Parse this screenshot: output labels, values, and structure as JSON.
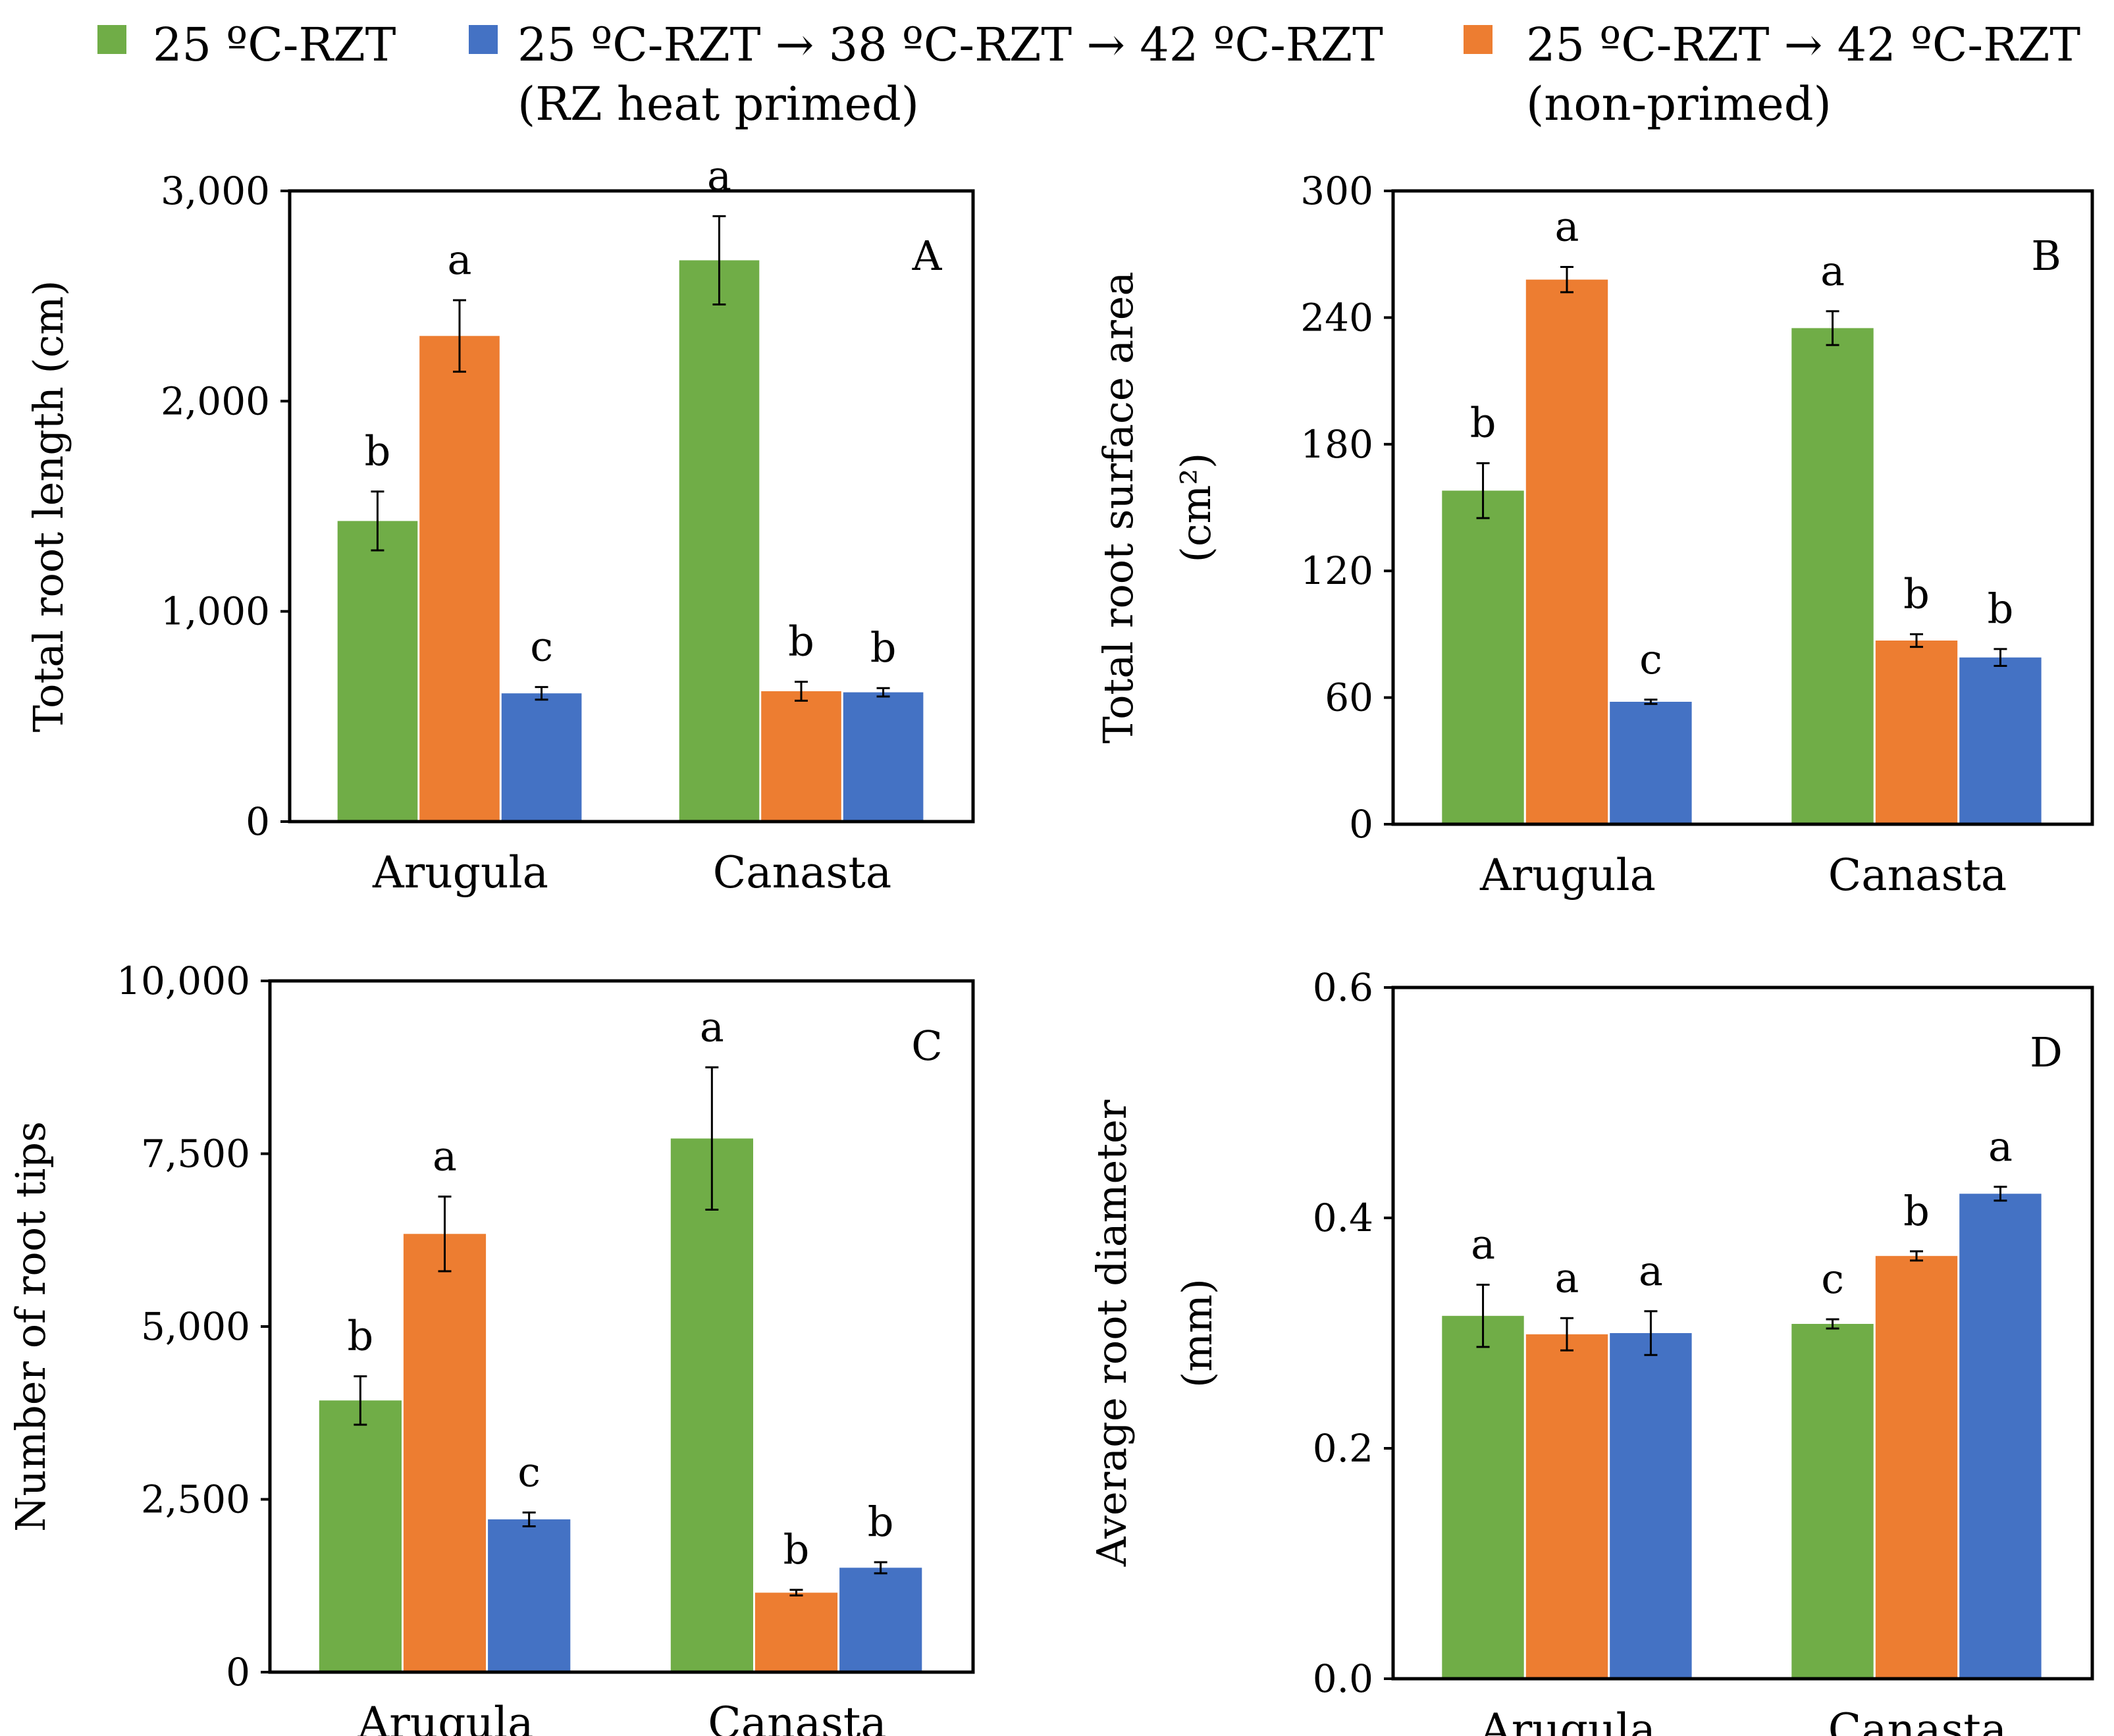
{
  "legend": {
    "items": [
      {
        "swatch_color": "#70AD47",
        "line1": "25 ºC-RZT",
        "line2": ""
      },
      {
        "swatch_color": "#4472C4",
        "line1": "25 ºC-RZT → 38 ºC-RZT → 42 ºC-RZT",
        "line2": "(RZ heat primed)"
      },
      {
        "swatch_color": "#ED7D31",
        "line1": "25 ºC-RZT → 42 ºC-RZT",
        "line2": "(non-primed)"
      }
    ]
  },
  "chart_data": [
    {
      "type": "bar",
      "panel_label": "A",
      "ylabel": "Total root length (cm)",
      "ylabel_lines": [
        "Total root length (cm)"
      ],
      "ylim": [
        0,
        3000
      ],
      "yticks": [
        "0",
        "1,000",
        "2,000",
        "3,000"
      ],
      "categories": [
        "Arugula",
        "Canasta"
      ],
      "series": [
        {
          "color": "#70AD47",
          "values": [
            1430,
            2670
          ],
          "errors": [
            140,
            210
          ],
          "letters": [
            "b",
            "a"
          ]
        },
        {
          "color": "#ED7D31",
          "values": [
            2310,
            620
          ],
          "errors": [
            170,
            45
          ],
          "letters": [
            "a",
            "b"
          ]
        },
        {
          "color": "#4472C4",
          "values": [
            610,
            615
          ],
          "errors": [
            30,
            20
          ],
          "letters": [
            "c",
            "b"
          ]
        }
      ]
    },
    {
      "type": "bar",
      "panel_label": "B",
      "ylabel": "Total root surface area (cm2)",
      "ylabel_lines": [
        "Total root surface area",
        "(cm²)"
      ],
      "ylim": [
        0,
        300
      ],
      "yticks": [
        "0",
        "60",
        "120",
        "180",
        "240",
        "300"
      ],
      "categories": [
        "Arugula",
        "Canasta"
      ],
      "series": [
        {
          "color": "#70AD47",
          "values": [
            158,
            235
          ],
          "errors": [
            13,
            8
          ],
          "letters": [
            "b",
            "a"
          ]
        },
        {
          "color": "#ED7D31",
          "values": [
            258,
            87
          ],
          "errors": [
            6,
            3
          ],
          "letters": [
            "a",
            "b"
          ]
        },
        {
          "color": "#4472C4",
          "values": [
            58,
            79
          ],
          "errors": [
            1,
            4
          ],
          "letters": [
            "c",
            "b"
          ]
        }
      ]
    },
    {
      "type": "bar",
      "panel_label": "C",
      "ylabel": "Number of root tips",
      "ylabel_lines": [
        "Number of root tips"
      ],
      "ylim": [
        0,
        10000
      ],
      "yticks": [
        "0",
        "2,500",
        "5,000",
        "7,500",
        "10,000"
      ],
      "categories": [
        "Arugula",
        "Canasta"
      ],
      "series": [
        {
          "color": "#70AD47",
          "values": [
            3930,
            7720
          ],
          "errors": [
            350,
            1030
          ],
          "letters": [
            "b",
            "a"
          ]
        },
        {
          "color": "#ED7D31",
          "values": [
            6340,
            1150
          ],
          "errors": [
            540,
            40
          ],
          "letters": [
            "a",
            "b"
          ]
        },
        {
          "color": "#4472C4",
          "values": [
            2210,
            1510
          ],
          "errors": [
            100,
            80
          ],
          "letters": [
            "c",
            "b"
          ]
        }
      ]
    },
    {
      "type": "bar",
      "panel_label": "D",
      "ylabel": "Average root diameter (mm)",
      "ylabel_lines": [
        "Average root diameter",
        "(mm)"
      ],
      "ylim": [
        0,
        0.6
      ],
      "yticks": [
        "0.0",
        "0.2",
        "0.4",
        "0.6"
      ],
      "categories": [
        "Arugula",
        "Canasta"
      ],
      "series": [
        {
          "color": "#70AD47",
          "values": [
            0.315,
            0.308
          ],
          "errors": [
            0.027,
            0.004
          ],
          "letters": [
            "a",
            "c"
          ]
        },
        {
          "color": "#ED7D31",
          "values": [
            0.299,
            0.367
          ],
          "errors": [
            0.014,
            0.004
          ],
          "letters": [
            "a",
            "b"
          ]
        },
        {
          "color": "#4472C4",
          "values": [
            0.3,
            0.421
          ],
          "errors": [
            0.019,
            0.006
          ],
          "letters": [
            "a",
            "a"
          ]
        }
      ]
    }
  ]
}
